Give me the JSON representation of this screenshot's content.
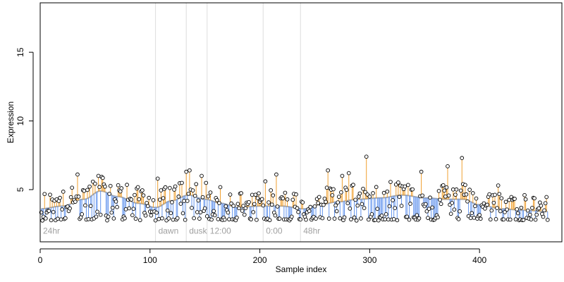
{
  "chart_data": {
    "type": "scatter",
    "title": "",
    "xlabel": "Sample index",
    "ylabel": "Expression",
    "xlim": [
      0,
      475
    ],
    "ylim": [
      1.2,
      18.6
    ],
    "x_ticks": [
      0,
      100,
      200,
      300,
      400
    ],
    "x_tick_labels": [
      "0",
      "100",
      "200",
      "300",
      "400"
    ],
    "y_ticks": [
      5,
      10,
      15
    ],
    "y_tick_labels": [
      "5",
      "10",
      "15"
    ],
    "grid": false,
    "legend": "none",
    "colors": {
      "above_stem": "#f0a030",
      "below_stem": "#6495ed",
      "smooth_line": "#aaaaaa",
      "vertical_line": "#dddddd",
      "point_stroke": "#000000",
      "point_fill": "#ffffff"
    },
    "vertical_markers": [
      {
        "x": 0,
        "label": "24hr"
      },
      {
        "x": 105,
        "label": "dawn"
      },
      {
        "x": 133,
        "label": "dusk"
      },
      {
        "x": 152,
        "label": "12:00"
      },
      {
        "x": 203,
        "label": "0:00"
      },
      {
        "x": 237,
        "label": "48hr"
      }
    ],
    "baseline_knots": {
      "x": [
        0,
        20,
        40,
        55,
        70,
        90,
        105,
        120,
        135,
        150,
        165,
        180,
        200,
        220,
        240,
        255,
        270,
        290,
        310,
        330,
        350,
        370,
        385,
        400,
        420,
        440,
        462
      ],
      "y": [
        3.6,
        3.8,
        4.3,
        4.9,
        4.5,
        4.0,
        3.7,
        4.2,
        4.6,
        4.3,
        4.0,
        3.7,
        3.8,
        3.8,
        3.6,
        3.9,
        4.1,
        4.3,
        4.4,
        4.6,
        4.4,
        4.3,
        4.3,
        3.9,
        3.6,
        3.5,
        3.4
      ]
    },
    "highlighted_points": [
      {
        "x": 34,
        "y": 6.1
      },
      {
        "x": 107,
        "y": 5.8
      },
      {
        "x": 133,
        "y": 6.3
      },
      {
        "x": 136,
        "y": 6.4
      },
      {
        "x": 147,
        "y": 6.0
      },
      {
        "x": 205,
        "y": 5.6
      },
      {
        "x": 215,
        "y": 6.1
      },
      {
        "x": 262,
        "y": 6.4
      },
      {
        "x": 275,
        "y": 6.0
      },
      {
        "x": 281,
        "y": 6.2
      },
      {
        "x": 297,
        "y": 7.4
      },
      {
        "x": 347,
        "y": 6.3
      },
      {
        "x": 371,
        "y": 6.7
      },
      {
        "x": 384,
        "y": 7.3
      },
      {
        "x": 417,
        "y": 5.3
      },
      {
        "x": 441,
        "y": 4.6
      },
      {
        "x": 462,
        "y": 2.8
      }
    ],
    "n_samples": 462
  }
}
